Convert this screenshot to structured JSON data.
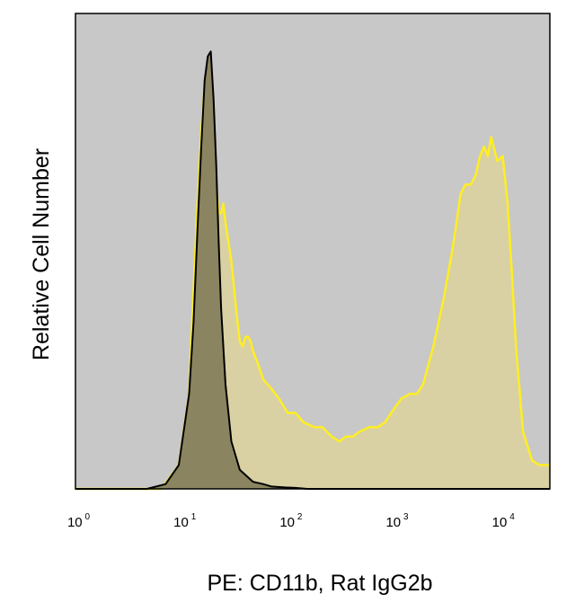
{
  "chart_data": {
    "type": "area",
    "xlabel": "PE: CD11b, Rat IgG2b",
    "ylabel": "Relative Cell Number",
    "xscale": "log",
    "xlim": [
      0.85,
      25000
    ],
    "ylim": [
      0,
      100
    ],
    "x_ticks": [
      {
        "value": 1,
        "base": "10",
        "exp": "0"
      },
      {
        "value": 10,
        "base": "10",
        "exp": "1"
      },
      {
        "value": 100,
        "base": "10",
        "exp": "2"
      },
      {
        "value": 1000,
        "base": "10",
        "exp": "3"
      },
      {
        "value": 10000,
        "base": "10",
        "exp": "4"
      }
    ],
    "background_color": "#c8c8c8",
    "series": [
      {
        "line_color": "#ffee22",
        "fill_color": "#d9d1a4",
        "x": [
          0.85,
          5.5,
          8,
          10,
          11,
          12,
          13,
          14,
          15,
          16,
          17,
          18,
          19,
          20,
          21,
          22,
          25,
          28,
          30,
          32,
          34,
          36,
          38,
          40,
          45,
          50,
          60,
          70,
          85,
          100,
          120,
          150,
          180,
          220,
          260,
          300,
          350,
          400,
          500,
          600,
          700,
          800,
          1000,
          1200,
          1400,
          1600,
          2000,
          2500,
          3000,
          3300,
          3600,
          4000,
          4500,
          5000,
          5500,
          6000,
          6500,
          7000,
          8000,
          9000,
          10000,
          11000,
          12000,
          14000,
          17000,
          20000,
          25000
        ],
        "y": [
          0,
          0,
          5,
          20,
          42,
          60,
          75,
          85,
          88,
          85,
          76,
          64,
          58,
          58,
          60,
          56,
          48,
          37,
          31,
          30,
          32,
          32,
          31,
          29,
          26,
          23,
          21,
          19,
          16,
          16,
          14,
          13,
          13,
          11,
          10,
          11,
          11,
          12,
          13,
          13,
          14,
          16,
          19,
          20,
          20,
          22,
          30,
          40,
          50,
          56,
          62,
          64,
          64,
          66,
          70,
          72,
          70,
          74,
          69,
          70,
          60,
          45,
          30,
          12,
          6,
          5,
          5
        ]
      },
      {
        "line_color": "#000000",
        "fill_color": "#8a8460",
        "x": [
          0.85,
          4,
          6,
          8,
          10,
          11,
          12,
          13,
          14,
          15,
          16,
          17,
          18,
          19,
          20,
          22,
          25,
          30,
          40,
          50,
          60,
          80,
          100,
          130,
          25000
        ],
        "y": [
          0,
          0,
          1,
          5,
          20,
          35,
          55,
          72,
          86,
          91,
          92,
          82,
          68,
          52,
          38,
          22,
          10,
          4,
          1.5,
          1,
          0.5,
          0.3,
          0.2,
          0,
          0
        ]
      }
    ]
  }
}
